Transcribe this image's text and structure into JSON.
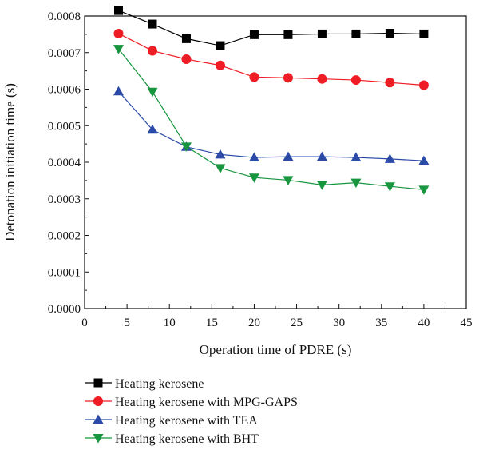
{
  "chart_data": {
    "type": "line",
    "title": "",
    "xlabel": "Operation time of PDRE (s)",
    "ylabel": "Detonation initiation time (s)",
    "xlim": [
      0,
      45
    ],
    "ylim": [
      0,
      0.0008
    ],
    "x_ticks": [
      "0",
      "5",
      "10",
      "15",
      "20",
      "25",
      "30",
      "35",
      "40",
      "45"
    ],
    "y_ticks": [
      "0.0000",
      "0.0001",
      "0.0002",
      "0.0003",
      "0.0004",
      "0.0005",
      "0.0006",
      "0.0007",
      "0.0008"
    ],
    "grid": false,
    "legend_position": "bottom-left-outside",
    "x": [
      4,
      8,
      12,
      16,
      20,
      24,
      28,
      32,
      36,
      40
    ],
    "series": [
      {
        "name": "Heating kerosene",
        "color": "#000000",
        "marker": "square",
        "values": [
          0.000815,
          0.000778,
          0.000738,
          0.000719,
          0.000749,
          0.000749,
          0.000751,
          0.000751,
          0.000753,
          0.000751
        ]
      },
      {
        "name": "Heating kerosene with MPG-GAPS",
        "color": "#ee1c25",
        "marker": "circle",
        "values": [
          0.000752,
          0.000705,
          0.000682,
          0.000665,
          0.000633,
          0.000631,
          0.000628,
          0.000625,
          0.000618,
          0.000611
        ]
      },
      {
        "name": "Heating kerosene with TEA",
        "color": "#2b4aa8",
        "marker": "triangle-up",
        "values": [
          0.000594,
          0.000489,
          0.000442,
          0.000421,
          0.000413,
          0.000415,
          0.000415,
          0.000413,
          0.000409,
          0.000404
        ]
      },
      {
        "name": "Heating kerosene with BHT",
        "color": "#17953f",
        "marker": "triangle-down",
        "values": [
          0.00071,
          0.000593,
          0.000443,
          0.000384,
          0.000358,
          0.000351,
          0.000338,
          0.000344,
          0.000334,
          0.000325
        ]
      }
    ]
  }
}
